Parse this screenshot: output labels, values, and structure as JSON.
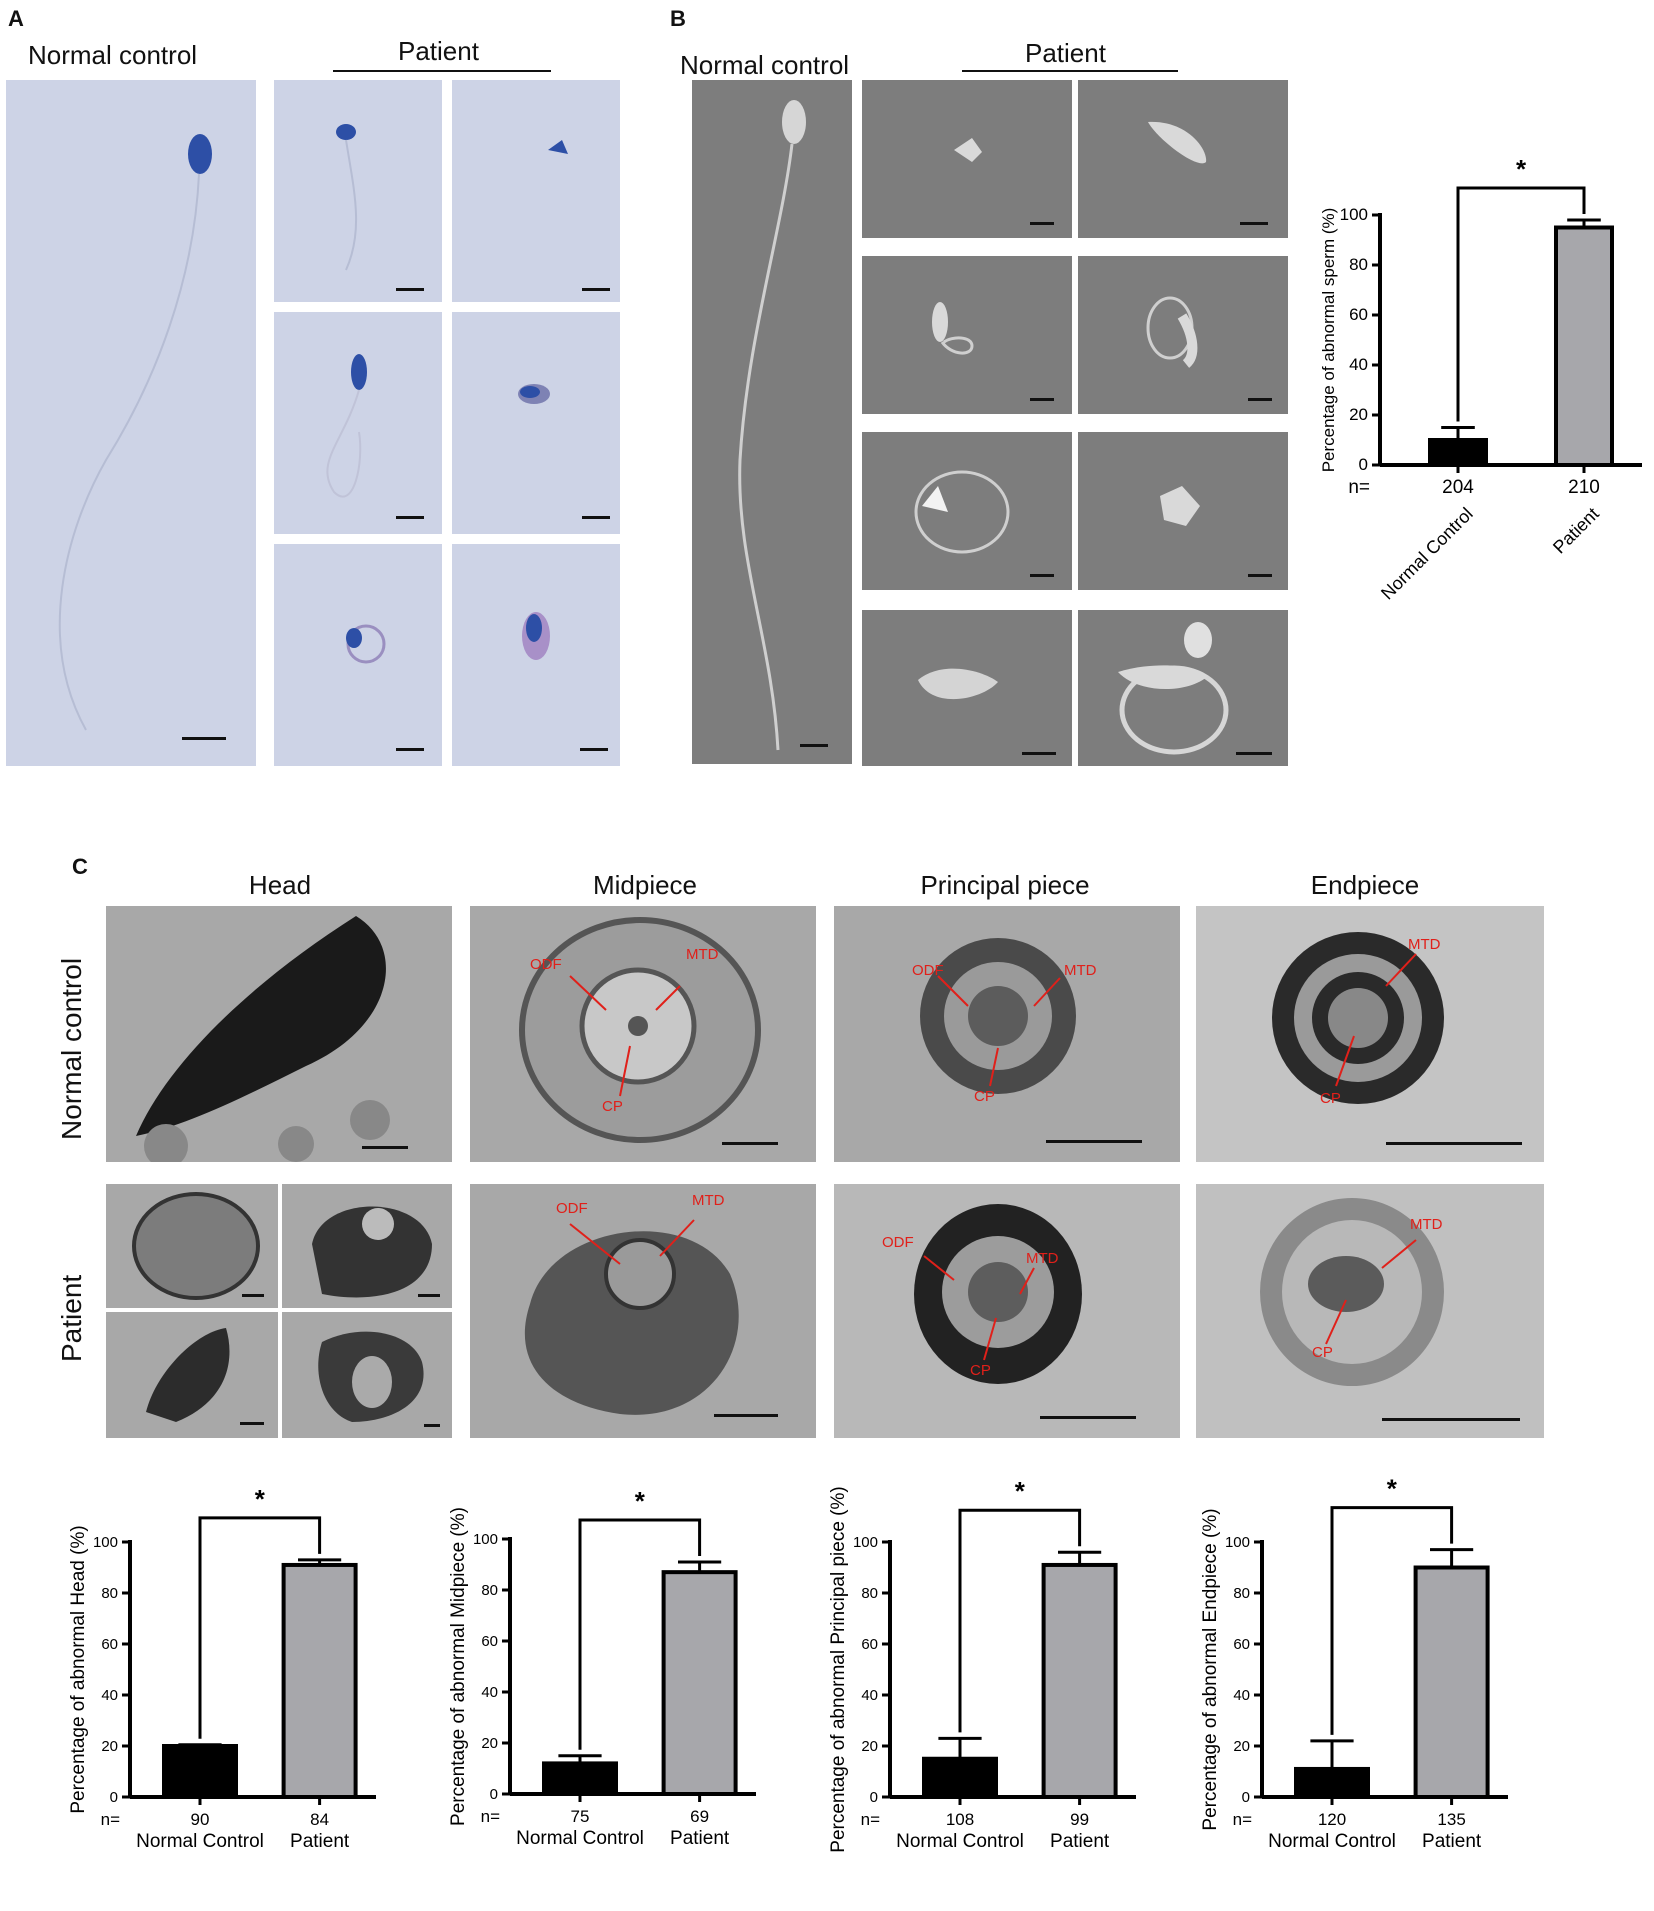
{
  "panel_a": {
    "letter": "A",
    "normal_label": "Normal control",
    "patient_label": "Patient"
  },
  "panel_b": {
    "letter": "B",
    "normal_label": "Normal control",
    "patient_label": "Patient"
  },
  "panel_c": {
    "letter": "C",
    "columns": [
      "Head",
      "Midpiece",
      "Principal piece",
      "Endpiece"
    ],
    "row_normal": "Normal control",
    "row_patient": "Patient",
    "arrow_labels": {
      "odf": "ODF",
      "mtd": "MTD",
      "cp": "CP"
    }
  },
  "colors": {
    "control_bar": "#000000",
    "patient_bar": "#a7a7ab",
    "arrow_red": "#e0201a"
  },
  "chart_data": [
    {
      "type": "bar",
      "categories": [
        "Normal Control",
        "Patient"
      ],
      "values": [
        10,
        95
      ],
      "errors": [
        5,
        3
      ],
      "n_prefix": "n=",
      "n_values": [
        "204",
        "210"
      ],
      "ylabel": "Percentage of abnormal sperm (%)",
      "ylim": [
        0,
        100
      ],
      "yticks": [
        0,
        20,
        40,
        60,
        80,
        100
      ],
      "significance": "*",
      "rotated_category_labels": true
    },
    {
      "type": "bar",
      "categories": [
        "Normal Control",
        "Patient"
      ],
      "values": [
        20,
        91
      ],
      "errors": [
        0.5,
        2
      ],
      "n_prefix": "n=",
      "n_values": [
        "90",
        "84"
      ],
      "ylabel": "Percentage of abnormal Head (%)",
      "ylim": [
        0,
        100
      ],
      "yticks": [
        0,
        20,
        40,
        60,
        80,
        100
      ],
      "significance": "*"
    },
    {
      "type": "bar",
      "categories": [
        "Normal Control",
        "Patient"
      ],
      "values": [
        12,
        87
      ],
      "errors": [
        3,
        4
      ],
      "n_prefix": "n=",
      "n_values": [
        "75",
        "69"
      ],
      "ylabel": "Percentage of abnormal Midpiece (%)",
      "ylim": [
        0,
        100
      ],
      "yticks": [
        0,
        20,
        40,
        60,
        80,
        100
      ],
      "significance": "*"
    },
    {
      "type": "bar",
      "categories": [
        "Normal Control",
        "Patient"
      ],
      "values": [
        15,
        91
      ],
      "errors": [
        8,
        5
      ],
      "n_prefix": "n=",
      "n_values": [
        "108",
        "99"
      ],
      "ylabel": "Percentage of abnormal Principal piece (%)",
      "ylim": [
        0,
        100
      ],
      "yticks": [
        0,
        20,
        40,
        60,
        80,
        100
      ],
      "significance": "*"
    },
    {
      "type": "bar",
      "categories": [
        "Normal Control",
        "Patient"
      ],
      "values": [
        11,
        90
      ],
      "errors": [
        11,
        7
      ],
      "n_prefix": "n=",
      "n_values": [
        "120",
        "135"
      ],
      "ylabel": "Percentage of abnormal Endpiece (%)",
      "ylim": [
        0,
        100
      ],
      "yticks": [
        0,
        20,
        40,
        60,
        80,
        100
      ],
      "significance": "*"
    }
  ]
}
